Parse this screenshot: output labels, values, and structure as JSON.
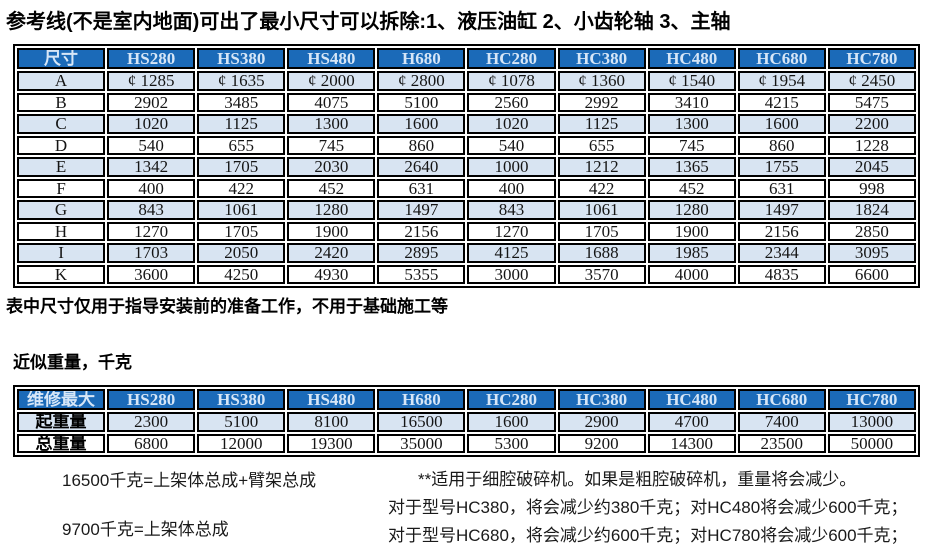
{
  "page": {
    "title": "参考线(不是室内地面)可出了最小尺寸可以拆除:1、液压油缸 2、小齿轮轴 3、主轴",
    "table_note": "表中尺寸仅用于指导安装前的准备工作，不用于基础施工等",
    "weights_title": "近似重量，千克"
  },
  "colors": {
    "header_bg": "#1b6ab8",
    "header_fg": "#d6e6f7",
    "alt_row_bg": "#d8e4f2",
    "border": "#000000"
  },
  "dimensions_table": {
    "header": [
      "尺寸",
      "HS280",
      "HS380",
      "HS480",
      "H680",
      "HC280",
      "HC380",
      "HC480",
      "HC680",
      "HC780"
    ],
    "rows": [
      {
        "label": "A",
        "values": [
          "¢ 1285",
          "¢ 1635",
          "¢ 2000",
          "¢ 2800",
          "¢ 1078",
          "¢ 1360",
          "¢ 1540",
          "¢ 1954",
          "¢ 2450"
        ]
      },
      {
        "label": "B",
        "values": [
          "2902",
          "3485",
          "4075",
          "5100",
          "2560",
          "2992",
          "3410",
          "4215",
          "5475"
        ]
      },
      {
        "label": "C",
        "values": [
          "1020",
          "1125",
          "1300",
          "1600",
          "1020",
          "1125",
          "1300",
          "1600",
          "2200"
        ]
      },
      {
        "label": "D",
        "values": [
          "540",
          "655",
          "745",
          "860",
          "540",
          "655",
          "745",
          "860",
          "1228"
        ]
      },
      {
        "label": "E",
        "values": [
          "1342",
          "1705",
          "2030",
          "2640",
          "1000",
          "1212",
          "1365",
          "1755",
          "2045"
        ]
      },
      {
        "label": "F",
        "values": [
          "400",
          "422",
          "452",
          "631",
          "400",
          "422",
          "452",
          "631",
          "998"
        ]
      },
      {
        "label": "G",
        "values": [
          "843",
          "1061",
          "1280",
          "1497",
          "843",
          "1061",
          "1280",
          "1497",
          "1824"
        ]
      },
      {
        "label": "H",
        "values": [
          "1270",
          "1705",
          "1900",
          "2156",
          "1270",
          "1705",
          "1900",
          "2156",
          "2850"
        ]
      },
      {
        "label": "I",
        "values": [
          "1703",
          "2050",
          "2420",
          "2895",
          "4125",
          "1688",
          "1985",
          "2344",
          "3095"
        ]
      },
      {
        "label": "K",
        "values": [
          "3600",
          "4250",
          "4930",
          "5355",
          "3000",
          "3570",
          "4000",
          "4835",
          "6600"
        ]
      }
    ]
  },
  "weight_table": {
    "header": [
      "维修最大",
      "HS280",
      "HS380",
      "HS480",
      "H680",
      "HC280",
      "HC380",
      "HC480",
      "HC680",
      "HC780"
    ],
    "rows": [
      {
        "label": "起重量",
        "values": [
          "2300",
          "5100",
          "8100",
          "16500",
          "1600",
          "2900",
          "4700",
          "7400",
          "13000"
        ]
      },
      {
        "label": "总重量",
        "values": [
          "6800",
          "12000",
          "19300",
          "35000",
          "5300",
          "9200",
          "14300",
          "23500",
          "50000"
        ]
      }
    ]
  },
  "footnotes": {
    "left": [
      "16500千克=上架体总成+臂架总成",
      "9700千克=上架体总成"
    ],
    "right": [
      "**适用于细腔破碎机。如果是粗腔破碎机，重量将会减少。",
      "对于型号HC380，将会减少约380千克；对HC480将会减少600千克；",
      "对于型号HC680，将会减少约600千克；对HC780将会减少600千克；"
    ]
  }
}
